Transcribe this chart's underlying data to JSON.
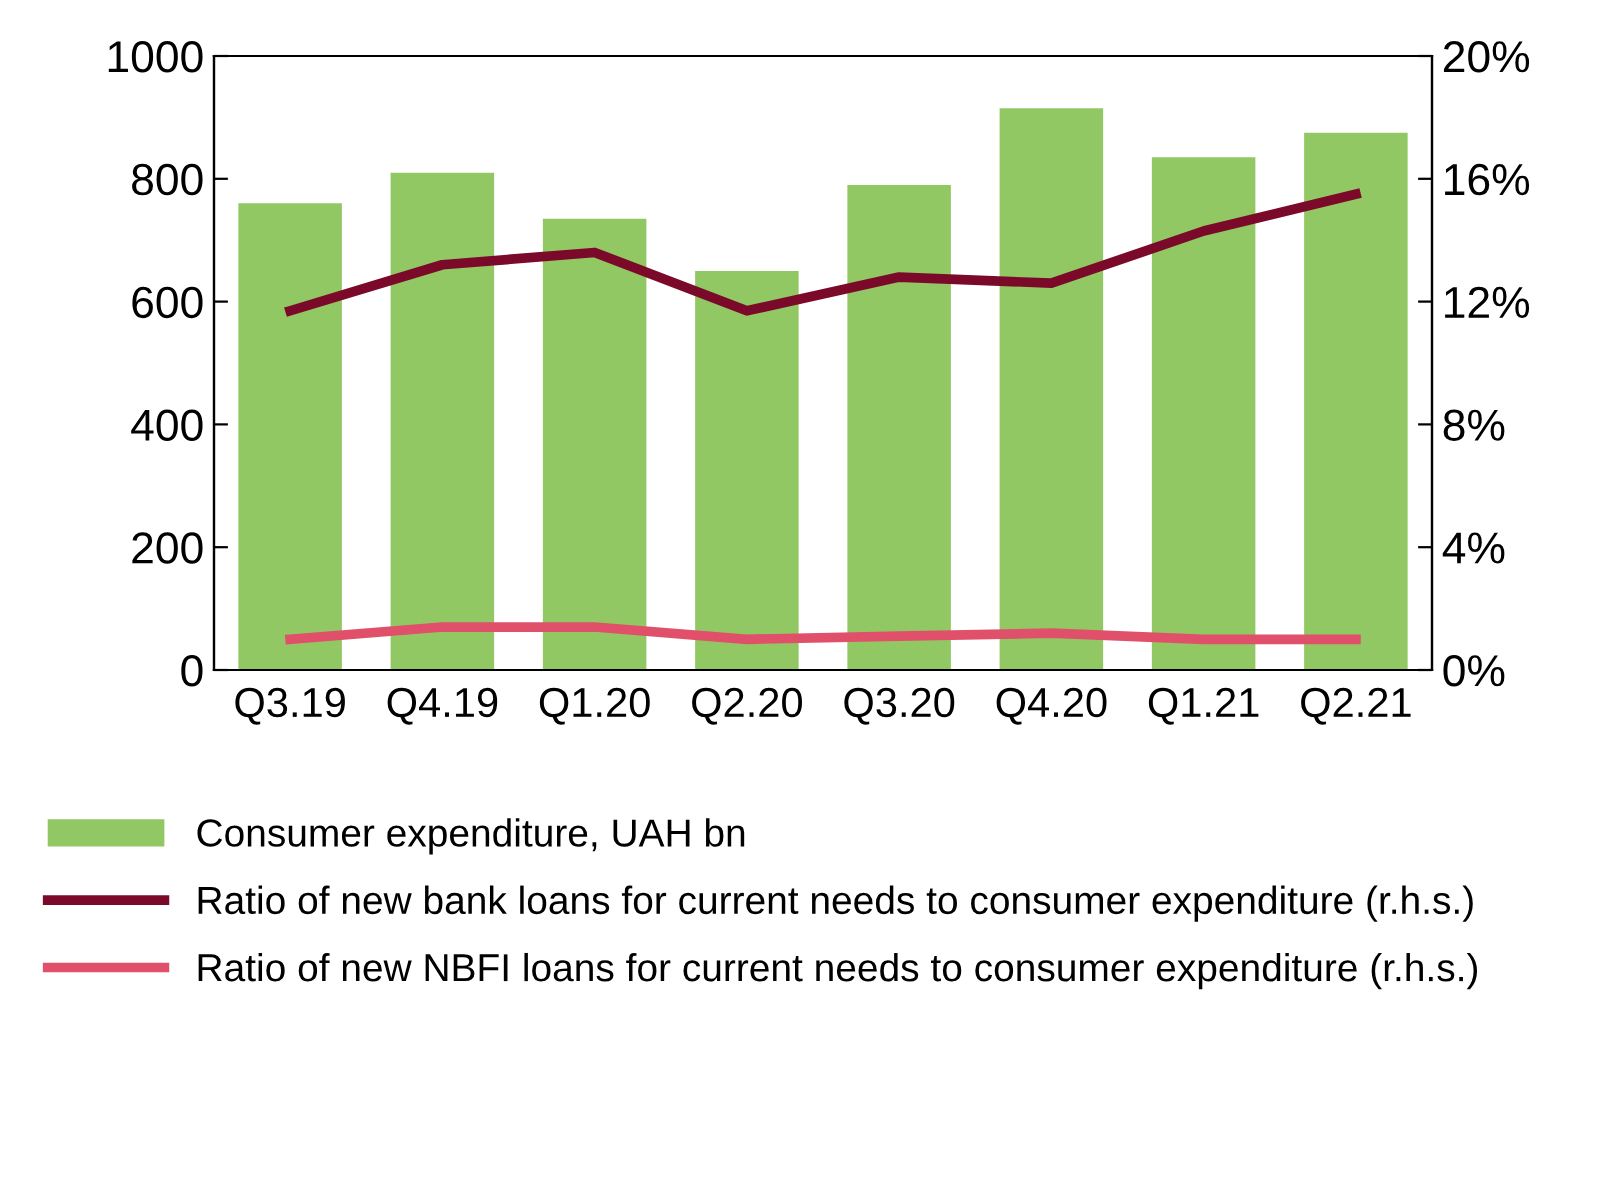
{
  "chart_data": {
    "type": "bar",
    "categories": [
      "Q3.19",
      "Q4.19",
      "Q1.20",
      "Q2.20",
      "Q3.20",
      "Q4.20",
      "Q1.21",
      "Q2.21"
    ],
    "series": [
      {
        "name": "Consumer expenditure, UAH bn",
        "color": "#92c864",
        "values": [
          760,
          810,
          735,
          650,
          790,
          915,
          835,
          875
        ]
      },
      {
        "name": "Ratio of new bank loans for current needs to consumer expenditure (r.h.s.)",
        "type": "line",
        "axis": "y2",
        "color": "#7b0a2a",
        "values": [
          11.7,
          13.2,
          13.6,
          11.7,
          12.8,
          12.6,
          14.3,
          15.5
        ]
      },
      {
        "name": "Ratio of new NBFI loans for current needs to consumer expenditure (r.h.s.)",
        "type": "line",
        "axis": "y2",
        "color": "#e0506a",
        "values": [
          1.0,
          1.4,
          1.4,
          1.0,
          1.1,
          1.2,
          1.0,
          1.0
        ]
      }
    ],
    "ylim": [
      0,
      1000
    ],
    "yticks": [
      0,
      200,
      400,
      600,
      800,
      1000
    ],
    "y2lim": [
      0,
      20
    ],
    "y2ticks": [
      {
        "value": 0,
        "label": "0%"
      },
      {
        "value": 4,
        "label": "4%"
      },
      {
        "value": 8,
        "label": "8%"
      },
      {
        "value": 12,
        "label": "12%"
      },
      {
        "value": 16,
        "label": "16%"
      },
      {
        "value": 20,
        "label": "20%"
      }
    ],
    "grid": false,
    "legend": "bottom",
    "marker": "none",
    "line_style": "solid"
  }
}
